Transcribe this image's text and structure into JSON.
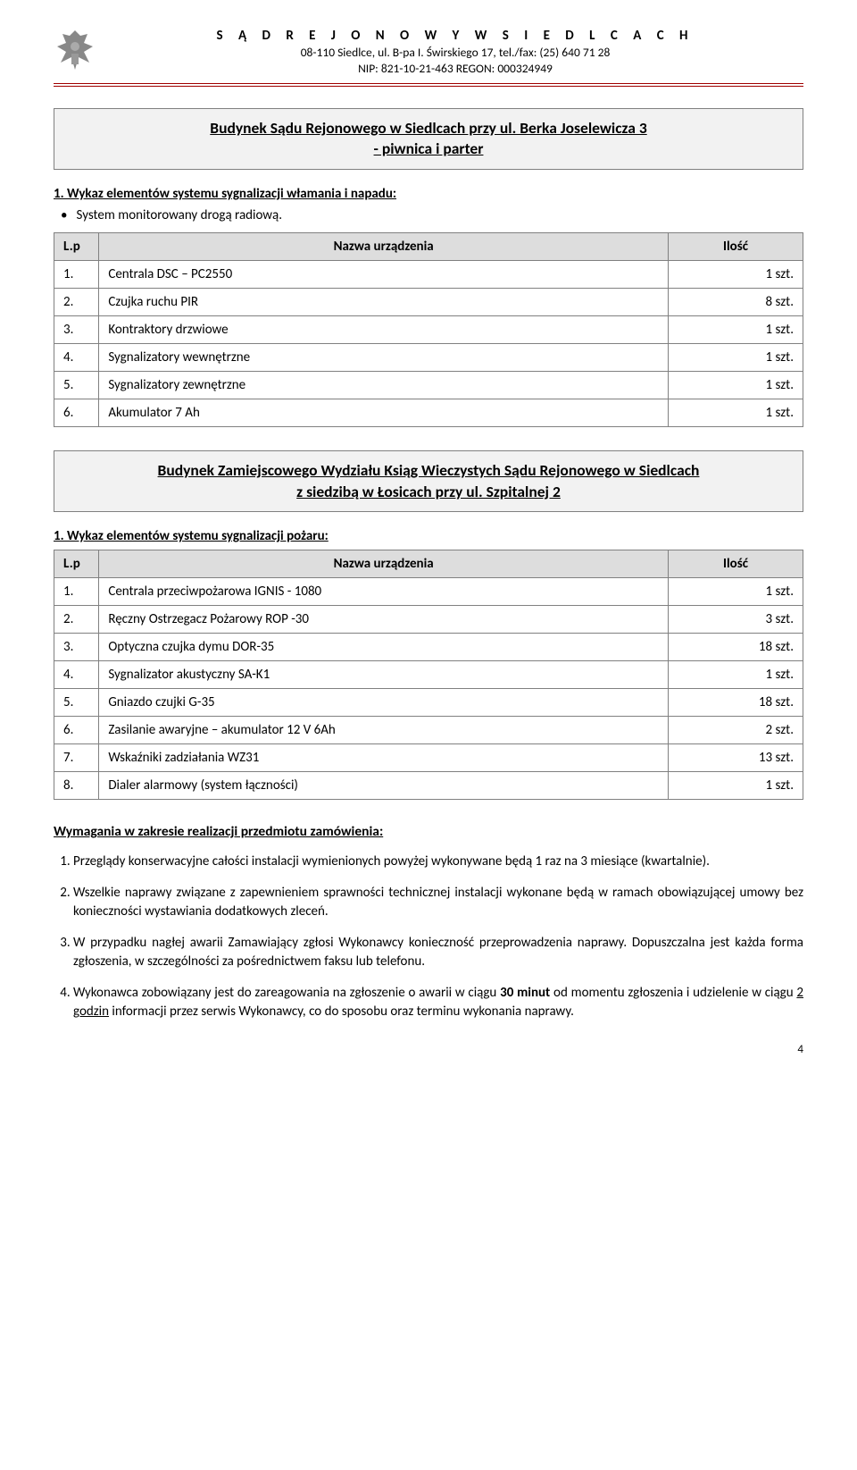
{
  "header": {
    "court": "S Ą D   R E J O N O W Y   W   S I E D L C A C H",
    "addr": "08-110 Siedlce, ul. B-pa I. Świrskiego 17, tel./fax: (25) 640 71 28",
    "ids": "NIP: 821-10-21-463        REGON: 000324949"
  },
  "section1": {
    "title_l1": "Budynek Sądu Rejonowego w Siedlcach przy ul. Berka Joselewicza 3",
    "title_l2": "- piwnica i parter"
  },
  "sub1": {
    "heading": "1. Wykaz elementów systemu sygnalizacji włamania i napadu:",
    "bullet": "System monitorowany drogą radiową."
  },
  "table1": {
    "head_lp": "L.p",
    "head_name": "Nazwa urządzenia",
    "head_qty": "Ilość",
    "rows": [
      {
        "lp": "1.",
        "name": "Centrala DSC – PC2550",
        "qty": "1 szt."
      },
      {
        "lp": "2.",
        "name": "Czujka ruchu PIR",
        "qty": "8 szt."
      },
      {
        "lp": "3.",
        "name": "Kontraktory drzwiowe",
        "qty": "1 szt."
      },
      {
        "lp": "4.",
        "name": "Sygnalizatory wewnętrzne",
        "qty": "1 szt."
      },
      {
        "lp": "5.",
        "name": "Sygnalizatory zewnętrzne",
        "qty": "1 szt."
      },
      {
        "lp": "6.",
        "name": "Akumulator 7 Ah",
        "qty": "1 szt."
      }
    ]
  },
  "section2": {
    "title_l1": "Budynek Zamiejscowego Wydziału Ksiąg Wieczystych Sądu Rejonowego w Siedlcach",
    "title_l2": "z siedzibą w Łosicach przy ul. Szpitalnej 2"
  },
  "sub2": {
    "heading": "1. Wykaz elementów systemu sygnalizacji pożaru:"
  },
  "table2": {
    "head_lp": "L.p",
    "head_name": "Nazwa urządzenia",
    "head_qty": "Ilość",
    "rows": [
      {
        "lp": "1.",
        "name": "Centrala przeciwpożarowa IGNIS - 1080",
        "qty": "1 szt."
      },
      {
        "lp": "2.",
        "name": "Ręczny Ostrzegacz Pożarowy ROP -30",
        "qty": "3 szt."
      },
      {
        "lp": "3.",
        "name": "Optyczna czujka dymu DOR-35",
        "qty": "18 szt."
      },
      {
        "lp": "4.",
        "name": "Sygnalizator akustyczny SA-K1",
        "qty": "1 szt."
      },
      {
        "lp": "5.",
        "name": "Gniazdo czujki G-35",
        "qty": "18 szt."
      },
      {
        "lp": "6.",
        "name": "Zasilanie awaryjne – akumulator 12 V 6Ah",
        "qty": "2 szt."
      },
      {
        "lp": "7.",
        "name": "Wskaźniki zadziałania WZ31",
        "qty": "13 szt."
      },
      {
        "lp": "8.",
        "name": "Dialer alarmowy (system łączności)",
        "qty": "1 szt."
      }
    ]
  },
  "req": {
    "title": "Wymagania w zakresie realizacji przedmiotu zamówienia:",
    "items": [
      "Przeglądy konserwacyjne całości instalacji wymienionych powyżej wykonywane będą 1 raz na 3 miesiące (kwartalnie).",
      "Wszelkie naprawy związane z zapewnieniem sprawności technicznej instalacji wykonane będą w ramach obowiązującej umowy bez konieczności wystawiania dodatkowych zleceń.",
      "W przypadku nagłej awarii Zamawiający zgłosi Wykonawcy konieczność przeprowadzenia naprawy. Dopuszczalna jest każda forma zgłoszenia, w szczególności za pośrednictwem faksu lub telefonu."
    ],
    "item4_a": "Wykonawca zobowiązany jest do zareagowania na zgłoszenie o awarii w ciągu ",
    "item4_b": "30 minut",
    "item4_c": " od momentu zgłoszenia i udzielenie w ciągu ",
    "item4_d": "2 godzin",
    "item4_e": " informacji przez serwis Wykonawcy, co do sposobu oraz terminu wykonania naprawy."
  },
  "pagenum": "4"
}
